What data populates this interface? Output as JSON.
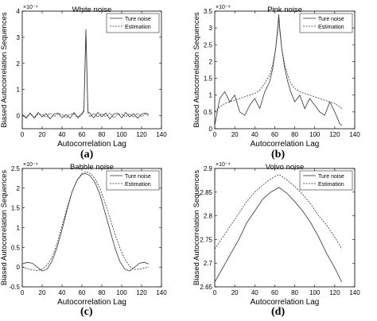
{
  "panels": [
    {
      "letter": "(a)",
      "chart_data": {
        "type": "line",
        "title": "White noise",
        "xlabel": "Autocorrelation Lag",
        "ylabel": "Biased Autocorrelation Sequences",
        "multiplier": "×10⁻⁴",
        "xlim": [
          0,
          140
        ],
        "ylim": [
          -0.5,
          4
        ],
        "xticks": [
          "0",
          "20",
          "40",
          "60",
          "80",
          "100",
          "120",
          "140"
        ],
        "yticks": [
          "0",
          "1",
          "2",
          "3",
          "4"
        ],
        "legend": "top-right",
        "series": [
          {
            "name": "Ture noise",
            "style": "solid",
            "x": [
              0,
              4,
              8,
              12,
              16,
              20,
              24,
              28,
              32,
              36,
              40,
              44,
              48,
              52,
              56,
              60,
              62,
              64,
              66,
              68,
              72,
              76,
              80,
              84,
              88,
              92,
              96,
              100,
              104,
              108,
              112,
              116,
              120,
              124,
              127
            ],
            "y": [
              0.05,
              -0.1,
              0.1,
              -0.08,
              0.12,
              -0.05,
              0.08,
              -0.12,
              0.06,
              0.1,
              -0.08,
              0.05,
              -0.1,
              0.12,
              -0.06,
              0.08,
              0.2,
              3.3,
              0.15,
              0.1,
              -0.08,
              0.12,
              -0.05,
              0.1,
              -0.12,
              0.06,
              0.1,
              -0.08,
              0.12,
              -0.05,
              0.08,
              -0.1,
              0.06,
              0.1,
              0.05
            ]
          },
          {
            "name": "Estimation",
            "style": "dashed",
            "x": [
              0,
              4,
              8,
              12,
              16,
              20,
              24,
              28,
              32,
              36,
              40,
              44,
              48,
              52,
              56,
              60,
              62,
              64,
              66,
              68,
              72,
              76,
              80,
              84,
              88,
              92,
              96,
              100,
              104,
              108,
              112,
              116,
              120,
              124,
              127
            ],
            "y": [
              0.0,
              -0.05,
              0.08,
              -0.1,
              0.06,
              0.05,
              -0.06,
              0.1,
              -0.04,
              0.06,
              0.05,
              -0.08,
              0.06,
              0.05,
              -0.1,
              0.05,
              0.15,
              3.2,
              0.12,
              -0.05,
              0.1,
              -0.06,
              0.08,
              -0.04,
              0.1,
              -0.08,
              0.05,
              0.06,
              -0.05,
              0.08,
              -0.06,
              0.1,
              -0.04,
              0.06,
              0.0
            ]
          }
        ]
      }
    },
    {
      "letter": "(b)",
      "chart_data": {
        "type": "line",
        "title": "Pink noise",
        "xlabel": "Autocorrelation Lag",
        "ylabel": "Biased Autocorrelation Sequences",
        "multiplier": "×10⁻⁴",
        "xlim": [
          0,
          140
        ],
        "ylim": [
          0,
          3.5
        ],
        "xticks": [
          "0",
          "20",
          "40",
          "60",
          "80",
          "100",
          "120",
          "140"
        ],
        "yticks": [
          "0",
          "0.5",
          "1",
          "1.5",
          "2",
          "2.5",
          "3",
          "3.5"
        ],
        "legend": "top-right",
        "series": [
          {
            "name": "Ture noise",
            "style": "solid",
            "x": [
              0,
              5,
              10,
              15,
              20,
              25,
              30,
              35,
              40,
              45,
              50,
              55,
              58,
              61,
              63,
              64,
              65,
              67,
              70,
              73,
              76,
              80,
              85,
              90,
              95,
              100,
              105,
              110,
              115,
              120,
              125,
              127
            ],
            "y": [
              0.1,
              0.9,
              1.1,
              0.8,
              1.0,
              0.5,
              0.4,
              0.7,
              0.9,
              0.6,
              1.1,
              1.4,
              1.8,
              2.4,
              3.0,
              3.4,
              3.0,
              2.4,
              1.8,
              1.4,
              1.1,
              0.8,
              1.0,
              0.6,
              0.9,
              0.7,
              0.5,
              0.4,
              0.8,
              0.5,
              0.15,
              0.1
            ]
          },
          {
            "name": "Estimation",
            "style": "dashed",
            "x": [
              0,
              5,
              10,
              15,
              20,
              25,
              30,
              35,
              40,
              45,
              50,
              55,
              58,
              61,
              63,
              64,
              65,
              67,
              70,
              73,
              76,
              80,
              85,
              90,
              95,
              100,
              105,
              110,
              115,
              120,
              125,
              127
            ],
            "y": [
              0.5,
              0.65,
              0.75,
              0.8,
              0.85,
              0.9,
              0.95,
              1.0,
              1.05,
              1.15,
              1.35,
              1.6,
              1.9,
              2.4,
              2.9,
              3.3,
              2.9,
              2.4,
              1.9,
              1.6,
              1.35,
              1.2,
              1.1,
              1.05,
              1.0,
              0.95,
              0.9,
              0.85,
              0.8,
              0.75,
              0.65,
              0.6
            ]
          }
        ]
      }
    },
    {
      "letter": "(c)",
      "chart_data": {
        "type": "line",
        "title": "Babble noise",
        "xlabel": "Autocorrelation Lag",
        "ylabel": "Biased Autocorrelation Sequences",
        "multiplier": "×10⁻⁴",
        "xlim": [
          0,
          140
        ],
        "ylim": [
          -0.5,
          2.5
        ],
        "xticks": [
          "0",
          "20",
          "40",
          "60",
          "80",
          "100",
          "120",
          "140"
        ],
        "yticks": [
          "-0.5",
          "0",
          "0.5",
          "1",
          "1.5",
          "2",
          "2.5"
        ],
        "legend": "top-right",
        "series": [
          {
            "name": "Ture noise",
            "style": "solid",
            "x": [
              0,
              5,
              10,
              15,
              20,
              25,
              30,
              35,
              40,
              45,
              50,
              55,
              60,
              64,
              68,
              73,
              78,
              83,
              88,
              93,
              98,
              103,
              108,
              113,
              118,
              123,
              127
            ],
            "y": [
              0.08,
              0.12,
              0.1,
              0.0,
              -0.1,
              -0.05,
              0.15,
              0.5,
              0.95,
              1.45,
              1.9,
              2.2,
              2.35,
              2.37,
              2.32,
              2.15,
              1.85,
              1.4,
              0.95,
              0.5,
              0.15,
              -0.05,
              -0.1,
              0.0,
              0.1,
              0.12,
              0.08
            ]
          },
          {
            "name": "Estimation",
            "style": "dashed",
            "x": [
              0,
              5,
              10,
              15,
              20,
              25,
              30,
              35,
              40,
              45,
              50,
              55,
              60,
              64,
              68,
              73,
              78,
              83,
              88,
              93,
              98,
              103,
              108,
              113,
              118,
              123,
              127
            ],
            "y": [
              0.0,
              -0.04,
              -0.07,
              -0.09,
              -0.05,
              0.05,
              0.25,
              0.6,
              1.05,
              1.5,
              1.9,
              2.2,
              2.37,
              2.42,
              2.38,
              2.25,
              2.0,
              1.65,
              1.25,
              0.85,
              0.5,
              0.2,
              0.02,
              -0.06,
              -0.05,
              -0.02,
              0.0
            ]
          }
        ]
      }
    },
    {
      "letter": "(d)",
      "chart_data": {
        "type": "line",
        "title": "Volvo noise",
        "xlabel": "Autocorrelation Lag",
        "ylabel": "Biased Autocorrelation Sequences",
        "multiplier": "×10⁻⁴",
        "xlim": [
          0,
          140
        ],
        "ylim": [
          2.65,
          2.9
        ],
        "xticks": [
          "0",
          "20",
          "40",
          "60",
          "80",
          "100",
          "120",
          "140"
        ],
        "yticks": [
          "2.65",
          "2.7",
          "2.75",
          "2.8",
          "2.85",
          "2.9"
        ],
        "legend": "top-right",
        "series": [
          {
            "name": "Ture noise",
            "style": "solid",
            "x": [
              0,
              8,
              16,
              24,
              32,
              40,
              48,
              56,
              62,
              64,
              66,
              72,
              80,
              88,
              96,
              104,
              112,
              120,
              127
            ],
            "y": [
              2.66,
              2.69,
              2.72,
              2.75,
              2.785,
              2.81,
              2.835,
              2.85,
              2.857,
              2.86,
              2.857,
              2.848,
              2.83,
              2.81,
              2.785,
              2.755,
              2.72,
              2.69,
              2.66
            ]
          },
          {
            "name": "Estimation",
            "style": "dashed",
            "x": [
              0,
              8,
              16,
              24,
              32,
              40,
              48,
              56,
              62,
              64,
              66,
              72,
              80,
              88,
              96,
              104,
              112,
              120,
              127
            ],
            "y": [
              2.73,
              2.755,
              2.78,
              2.805,
              2.83,
              2.85,
              2.865,
              2.878,
              2.885,
              2.887,
              2.885,
              2.876,
              2.862,
              2.845,
              2.825,
              2.8,
              2.78,
              2.755,
              2.73
            ]
          }
        ]
      }
    }
  ]
}
